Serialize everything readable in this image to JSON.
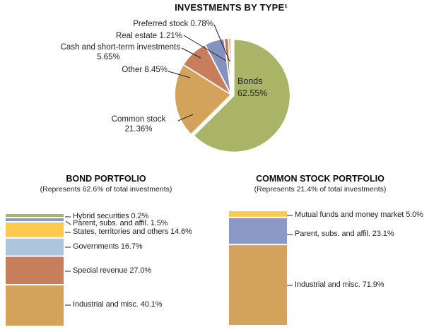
{
  "page": {
    "background": "#ffffff"
  },
  "chart_data": [
    {
      "type": "pie",
      "title": "INVESTMENTS BY TYPE¹",
      "start_angle_deg": 0,
      "direction": "clockwise",
      "slices": [
        {
          "label": "Bonds",
          "value": 62.55,
          "color": "#a9b467",
          "display_lines": [
            "Bonds",
            "62.55%"
          ]
        },
        {
          "label": "Common stock",
          "value": 21.36,
          "color": "#d3a35c",
          "display_lines": [
            "Common stock",
            "21.36%"
          ]
        },
        {
          "label": "Other",
          "value": 8.45,
          "color": "#c67e5d",
          "display_lines": [
            "Other 8.45%"
          ]
        },
        {
          "label": "Cash and short-term investments",
          "value": 5.65,
          "color": "#8492c0",
          "display_lines": [
            "Cash and short-term investments",
            "5.65%"
          ]
        },
        {
          "label": "Real estate",
          "value": 1.21,
          "color": "#c47758",
          "display_lines": [
            "Real estate 1.21%"
          ]
        },
        {
          "label": "Preferred stock",
          "value": 0.78,
          "color": "#f0a93a",
          "display_lines": [
            "Preferred stock 0.78%"
          ]
        }
      ]
    },
    {
      "type": "stacked-bar",
      "title": "BOND PORTFOLIO",
      "subtitle": "(Represents 62.6% of total investments)",
      "segments": [
        {
          "label": "Hybrid securities",
          "value": 0.2,
          "color": "#a9b467",
          "display": "Hybrid securities 0.2%"
        },
        {
          "label": "Parent, subs. and affil.",
          "value": 1.5,
          "color": "#8b99c6",
          "display": "Parent, subs. and affil. 1.5%"
        },
        {
          "label": "States, territories and others",
          "value": 14.6,
          "color": "#fbca4f",
          "display": "States, territories and others 14.6%"
        },
        {
          "label": "Governments",
          "value": 16.7,
          "color": "#adc6dd",
          "display": "Governments 16.7%"
        },
        {
          "label": "Special revenue",
          "value": 27.0,
          "color": "#c67e5d",
          "display": "Special revenue 27.0%"
        },
        {
          "label": "Industrial and misc.",
          "value": 40.1,
          "color": "#d3a35c",
          "display": "Industrial and misc. 40.1%"
        }
      ]
    },
    {
      "type": "stacked-bar",
      "title": "COMMON STOCK PORTFOLIO",
      "subtitle": "(Represents 21.4% of total investments)",
      "segments": [
        {
          "label": "Mutual funds and money market",
          "value": 5.0,
          "color": "#fbca4f",
          "display": "Mutual funds and money market 5.0%"
        },
        {
          "label": "Parent, subs. and affil.",
          "value": 23.1,
          "color": "#8b99c6",
          "display": "Parent, subs. and affil. 23.1%"
        },
        {
          "label": "Industrial and misc.",
          "value": 71.9,
          "color": "#d3a35c",
          "display": "Industrial and misc. 71.9%"
        }
      ]
    }
  ]
}
